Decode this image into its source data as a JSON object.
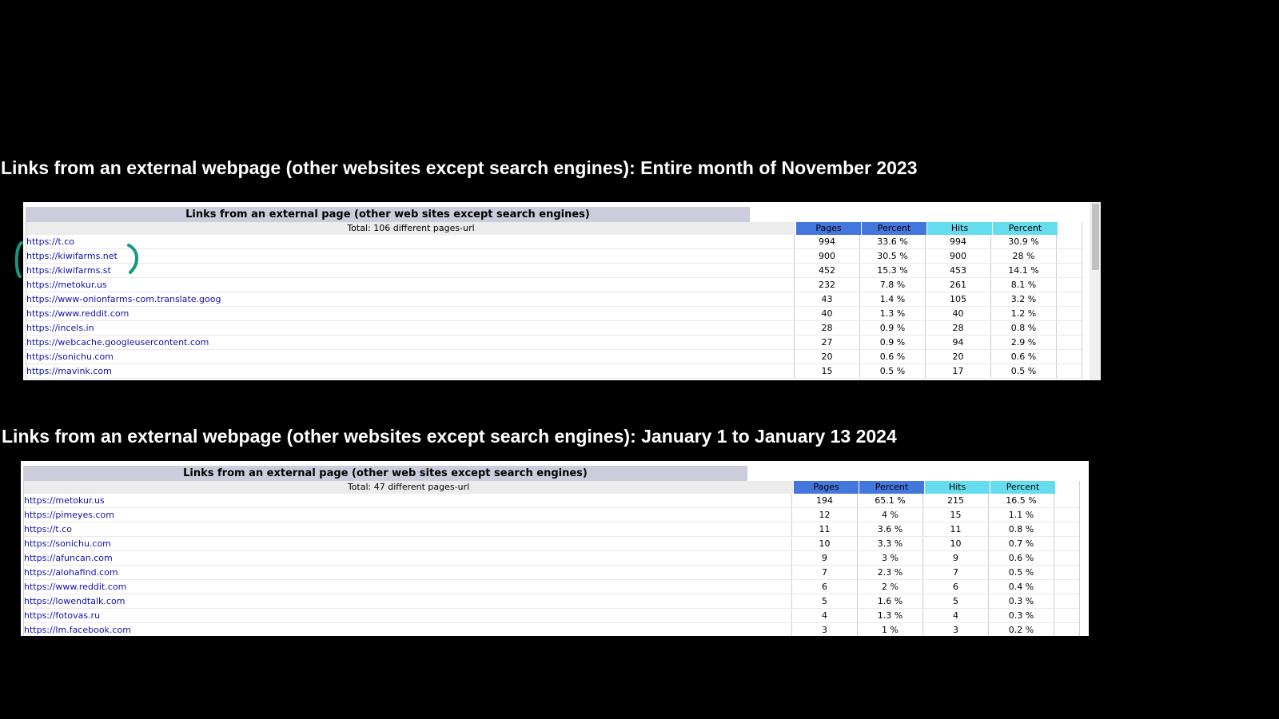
{
  "heading1": "Links from an external webpage (other websites except search engines): Entire month of November 2023",
  "heading2": "Links from an external webpage (other websites except search engines): January 1 to January 13 2024",
  "table1": {
    "title": "Links from an external page (other web sites except search engines)",
    "total": "Total: 106 different pages-url",
    "columns": [
      "Pages",
      "Percent",
      "Hits",
      "Percent"
    ],
    "rows": [
      {
        "url": "https://t.co",
        "pages": "994",
        "pages_pct": "33.6 %",
        "hits": "994",
        "hits_pct": "30.9 %"
      },
      {
        "url": "https://kiwifarms.net",
        "pages": "900",
        "pages_pct": "30.5 %",
        "hits": "900",
        "hits_pct": "28 %"
      },
      {
        "url": "https://kiwifarms.st",
        "pages": "452",
        "pages_pct": "15.3 %",
        "hits": "453",
        "hits_pct": "14.1 %"
      },
      {
        "url": "https://metokur.us",
        "pages": "232",
        "pages_pct": "7.8 %",
        "hits": "261",
        "hits_pct": "8.1 %"
      },
      {
        "url": "https://www-onionfarms-com.translate.goog",
        "pages": "43",
        "pages_pct": "1.4 %",
        "hits": "105",
        "hits_pct": "3.2 %"
      },
      {
        "url": "https://www.reddit.com",
        "pages": "40",
        "pages_pct": "1.3 %",
        "hits": "40",
        "hits_pct": "1.2 %"
      },
      {
        "url": "https://incels.in",
        "pages": "28",
        "pages_pct": "0.9 %",
        "hits": "28",
        "hits_pct": "0.8 %"
      },
      {
        "url": "https://webcache.googleusercontent.com",
        "pages": "27",
        "pages_pct": "0.9 %",
        "hits": "94",
        "hits_pct": "2.9 %"
      },
      {
        "url": "https://sonichu.com",
        "pages": "20",
        "pages_pct": "0.6 %",
        "hits": "20",
        "hits_pct": "0.6 %"
      },
      {
        "url": "https://mavink.com",
        "pages": "15",
        "pages_pct": "0.5 %",
        "hits": "17",
        "hits_pct": "0.5 %"
      }
    ]
  },
  "table2": {
    "title": "Links from an external page (other web sites except search engines)",
    "total": "Total: 47 different pages-url",
    "columns": [
      "Pages",
      "Percent",
      "Hits",
      "Percent"
    ],
    "rows": [
      {
        "url": "https://metokur.us",
        "pages": "194",
        "pages_pct": "65.1 %",
        "hits": "215",
        "hits_pct": "16.5 %"
      },
      {
        "url": "https://pimeyes.com",
        "pages": "12",
        "pages_pct": "4 %",
        "hits": "15",
        "hits_pct": "1.1 %"
      },
      {
        "url": "https://t.co",
        "pages": "11",
        "pages_pct": "3.6 %",
        "hits": "11",
        "hits_pct": "0.8 %"
      },
      {
        "url": "https://sonichu.com",
        "pages": "10",
        "pages_pct": "3.3 %",
        "hits": "10",
        "hits_pct": "0.7 %"
      },
      {
        "url": "https://afuncan.com",
        "pages": "9",
        "pages_pct": "3 %",
        "hits": "9",
        "hits_pct": "0.6 %"
      },
      {
        "url": "https://alohafind.com",
        "pages": "7",
        "pages_pct": "2.3 %",
        "hits": "7",
        "hits_pct": "0.5 %"
      },
      {
        "url": "https://www.reddit.com",
        "pages": "6",
        "pages_pct": "2 %",
        "hits": "6",
        "hits_pct": "0.4 %"
      },
      {
        "url": "https://lowendtalk.com",
        "pages": "5",
        "pages_pct": "1.6 %",
        "hits": "5",
        "hits_pct": "0.3 %"
      },
      {
        "url": "https://fotovas.ru",
        "pages": "4",
        "pages_pct": "1.3 %",
        "hits": "4",
        "hits_pct": "0.3 %"
      },
      {
        "url": "https://lm.facebook.com",
        "pages": "3",
        "pages_pct": "1 %",
        "hits": "3",
        "hits_pct": "0.2 %"
      }
    ]
  },
  "colors": {
    "background": "#000000",
    "pages_header": "#4477dd",
    "hits_header": "#66ddee",
    "title_bar": "#ccccdd",
    "link": "#1111aa",
    "annotation": "#129a7f"
  }
}
